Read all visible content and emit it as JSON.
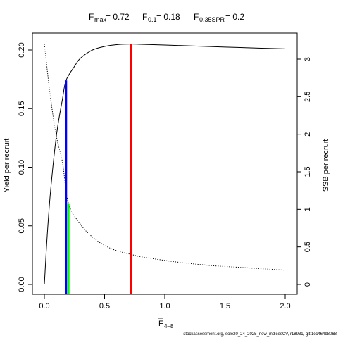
{
  "title": {
    "fmax_sub": "max",
    "fmax_value": "= 0.72",
    "f01_sub": "0.1",
    "f01_value": "= 0.18",
    "fspr_sub": "0.35SPR",
    "fspr_value": "= 0.2"
  },
  "footer": "stockassessment.org, sole20_24_2025_new_indicesCV, r18931, git:1cc464b8068",
  "chart_data": {
    "type": "line",
    "x_axis": {
      "label_symbol": "F",
      "label_sub": "4–8",
      "range": [
        0,
        2
      ],
      "ticks": [
        0,
        0.5,
        1,
        1.5,
        2
      ],
      "tick_labels": [
        "0.0",
        "0.5",
        "1.0",
        "1.5",
        "2.0"
      ]
    },
    "y_left": {
      "label": "Yield per recruit",
      "range": [
        0,
        0.205
      ],
      "ticks": [
        0,
        0.05,
        0.1,
        0.15,
        0.2
      ],
      "tick_labels": [
        "0.00",
        "0.05",
        "0.10",
        "0.15",
        "0.20"
      ]
    },
    "y_right": {
      "label": "SSB per recruit",
      "range": [
        0,
        3.2
      ],
      "ticks": [
        0,
        0.5,
        1,
        1.5,
        2,
        2.5,
        3
      ],
      "tick_labels": [
        "0",
        "0.5",
        "1",
        "1.5",
        "2",
        "2.5",
        "3"
      ]
    },
    "series": [
      {
        "axis": "left",
        "style": "solid",
        "color": "#000000",
        "x": [
          0,
          0.02,
          0.05,
          0.1,
          0.15,
          0.18,
          0.25,
          0.3,
          0.4,
          0.5,
          0.6,
          0.72,
          0.8,
          1.0,
          1.2,
          1.5,
          1.8,
          2.0
        ],
        "y": [
          0.0,
          0.036,
          0.078,
          0.127,
          0.158,
          0.174,
          0.186,
          0.193,
          0.2,
          0.203,
          0.2045,
          0.205,
          0.2048,
          0.2042,
          0.2035,
          0.2025,
          0.2015,
          0.201
        ]
      },
      {
        "axis": "right",
        "style": "dotted",
        "color": "#000000",
        "x": [
          0,
          0.05,
          0.1,
          0.15,
          0.2,
          0.3,
          0.4,
          0.5,
          0.6,
          0.72,
          0.8,
          1.0,
          1.2,
          1.4,
          1.6,
          1.8,
          2.0
        ],
        "y": [
          3.2,
          2.5,
          1.97,
          1.63,
          1.08,
          0.8,
          0.63,
          0.52,
          0.45,
          0.4,
          0.37,
          0.32,
          0.28,
          0.25,
          0.23,
          0.21,
          0.19
        ]
      }
    ],
    "reference_lines": [
      {
        "name": "F0.1",
        "x": 0.18,
        "y": 0.174,
        "axis": "left",
        "color": "#0000ff"
      },
      {
        "name": "F0.35SPR",
        "x": 0.2,
        "y": 1.08,
        "axis": "right",
        "color": "#00ff00"
      },
      {
        "name": "Fmax",
        "x": 0.72,
        "y": 0.205,
        "axis": "left",
        "color": "#ff0000"
      }
    ]
  }
}
